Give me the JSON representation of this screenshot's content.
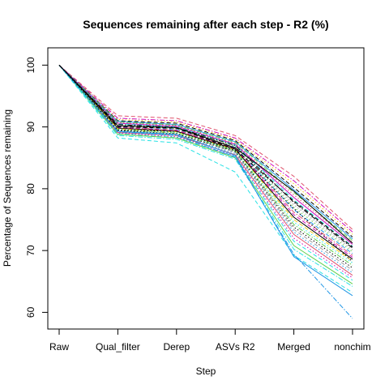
{
  "chart_data": {
    "type": "line",
    "title": "Sequences remaining after each step  - R2 (%)",
    "xlabel": "Step",
    "ylabel": "Percentage of Sequences remaining",
    "categories": [
      "Raw",
      "Qual_filter",
      "Derep",
      "ASVs R2",
      "Merged",
      "nonchim"
    ],
    "ylim": [
      57.3,
      102.8
    ],
    "yticks": [
      60,
      70,
      80,
      90,
      100
    ],
    "grid": false,
    "legend": "none",
    "palette": [
      "#000000",
      "#DF536B",
      "#61D04F",
      "#2297E6",
      "#28E2E5",
      "#CD0BBC",
      "#F5C710",
      "#9E9E9E"
    ],
    "series": [
      {
        "values": [
          100,
          91.8,
          91.4,
          88.6,
          82.0,
          73.4
        ],
        "color": "#DF536B",
        "dash": "dashed"
      },
      {
        "values": [
          100,
          91.4,
          91.0,
          88.2,
          81.3,
          73.0
        ],
        "color": "#CD0BBC",
        "dash": "dashdot"
      },
      {
        "values": [
          100,
          91.2,
          90.8,
          88.0,
          80.8,
          72.6
        ],
        "color": "#F5C710",
        "dash": "dotted"
      },
      {
        "values": [
          100,
          91.0,
          90.6,
          87.8,
          80.2,
          72.2
        ],
        "color": "#000000",
        "dash": "dashed"
      },
      {
        "values": [
          100,
          90.9,
          90.4,
          87.6,
          79.8,
          71.9
        ],
        "color": "#2297E6",
        "dash": "solid"
      },
      {
        "values": [
          100,
          90.8,
          90.3,
          87.5,
          79.4,
          71.6
        ],
        "color": "#61D04F",
        "dash": "dashed"
      },
      {
        "values": [
          100,
          90.7,
          90.2,
          87.3,
          79.0,
          71.3
        ],
        "color": "#DF536B",
        "dash": "dotted"
      },
      {
        "values": [
          100,
          90.6,
          90.1,
          87.2,
          78.6,
          71.0
        ],
        "color": "#CD0BBC",
        "dash": "solid"
      },
      {
        "values": [
          100,
          90.5,
          90.0,
          87.1,
          78.2,
          70.7
        ],
        "color": "#28E2E5",
        "dash": "dashed"
      },
      {
        "values": [
          100,
          90.4,
          89.9,
          87.0,
          77.8,
          70.4
        ],
        "color": "#000000",
        "dash": "dashdot"
      },
      {
        "values": [
          100,
          90.3,
          89.8,
          86.9,
          77.4,
          70.1
        ],
        "color": "#9E9E9E",
        "dash": "dotted"
      },
      {
        "values": [
          100,
          90.2,
          89.7,
          86.8,
          77.0,
          69.8
        ],
        "color": "#61D04F",
        "dash": "dotted"
      },
      {
        "values": [
          100,
          90.1,
          89.6,
          86.7,
          76.6,
          69.5
        ],
        "color": "#2297E6",
        "dash": "dashed"
      },
      {
        "values": [
          100,
          90.0,
          89.5,
          86.6,
          76.2,
          69.2
        ],
        "color": "#DF536B",
        "dash": "dashdot"
      },
      {
        "values": [
          100,
          89.9,
          89.4,
          86.5,
          75.8,
          68.9
        ],
        "color": "#CD0BBC",
        "dash": "dashed"
      },
      {
        "values": [
          100,
          89.8,
          89.3,
          86.4,
          75.4,
          68.6
        ],
        "color": "#000000",
        "dash": "solid"
      },
      {
        "values": [
          100,
          89.7,
          89.2,
          86.3,
          75.0,
          68.3
        ],
        "color": "#F5C710",
        "dash": "dashed"
      },
      {
        "values": [
          100,
          89.6,
          89.1,
          86.2,
          74.6,
          68.0
        ],
        "color": "#28E2E5",
        "dash": "dotted"
      },
      {
        "values": [
          100,
          89.5,
          89.0,
          86.1,
          74.2,
          67.6
        ],
        "color": "#61D04F",
        "dash": "dashdot"
      },
      {
        "values": [
          100,
          89.4,
          88.9,
          86.0,
          73.8,
          67.2
        ],
        "color": "#000000",
        "dash": "dotted"
      },
      {
        "values": [
          100,
          89.3,
          88.8,
          85.9,
          73.4,
          66.8
        ],
        "color": "#9E9E9E",
        "dash": "dashed"
      },
      {
        "values": [
          100,
          89.2,
          88.7,
          85.7,
          73.0,
          66.4
        ],
        "color": "#2297E6",
        "dash": "dotted"
      },
      {
        "values": [
          100,
          89.1,
          88.6,
          85.5,
          72.6,
          66.0
        ],
        "color": "#DF536B",
        "dash": "solid"
      },
      {
        "values": [
          100,
          89.0,
          88.4,
          85.3,
          72.0,
          65.6
        ],
        "color": "#CD0BBC",
        "dash": "dotted"
      },
      {
        "values": [
          100,
          88.9,
          88.3,
          85.2,
          71.5,
          65.2
        ],
        "color": "#28E2E5",
        "dash": "dashed"
      },
      {
        "values": [
          100,
          88.8,
          88.2,
          85.0,
          70.8,
          64.6
        ],
        "color": "#61D04F",
        "dash": "solid"
      },
      {
        "values": [
          100,
          88.6,
          88.0,
          84.8,
          70.2,
          64.2
        ],
        "color": "#28E2E5",
        "dash": "dashdot"
      },
      {
        "values": [
          100,
          88.2,
          87.4,
          82.7,
          69.2,
          63.2
        ],
        "color": "#28E2E5",
        "dash": "dashed"
      },
      {
        "values": [
          100,
          89.3,
          88.8,
          85.4,
          69.0,
          62.7
        ],
        "color": "#2297E6",
        "dash": "solid"
      },
      {
        "values": [
          100,
          89.2,
          88.6,
          85.1,
          69.4,
          59.0
        ],
        "color": "#2297E6",
        "dash": "dashdot"
      },
      {
        "values": [
          100,
          90.2,
          89.9,
          86.6,
          79.6,
          71.2
        ],
        "color": "#000000",
        "dash": "solid"
      },
      {
        "values": [
          100,
          90.0,
          89.8,
          86.4,
          78.0,
          70.6
        ],
        "color": "#000000",
        "dash": "dashed"
      },
      {
        "values": [
          100,
          89.5,
          89.3,
          86.2,
          76.8,
          68.2
        ],
        "color": "#000000",
        "dash": "dotted"
      }
    ]
  }
}
